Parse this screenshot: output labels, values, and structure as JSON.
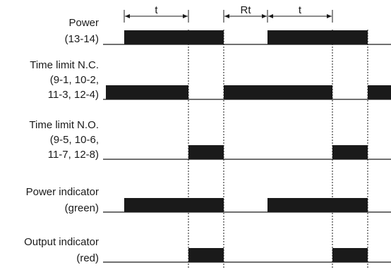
{
  "diagram": {
    "title": "",
    "timing_labels": {
      "on_time": "t",
      "reset_time": "Rt"
    },
    "rows": [
      {
        "id": "power",
        "label_lines": [
          "Power",
          "(13-14)"
        ],
        "segments": [
          {
            "from": "t0",
            "to": "t1",
            "state": "on"
          },
          {
            "from": "t1",
            "to": "t2",
            "state": "on"
          },
          {
            "from": "t3",
            "to": "t4",
            "state": "on"
          },
          {
            "from": "t4",
            "to": "t5",
            "state": "on"
          }
        ]
      },
      {
        "id": "time-limit-nc",
        "label_lines": [
          "Time limit N.C.",
          "(9-1, 10-2,",
          "11-3, 12-4)"
        ],
        "segments": [
          {
            "from": "start",
            "to": "t1",
            "state": "on"
          },
          {
            "from": "t2",
            "to": "t4",
            "state": "on"
          },
          {
            "from": "t5",
            "to": "end",
            "state": "on"
          }
        ]
      },
      {
        "id": "time-limit-no",
        "label_lines": [
          "Time limit N.O.",
          "(9-5, 10-6,",
          "11-7, 12-8)"
        ],
        "segments": [
          {
            "from": "t1",
            "to": "t2",
            "state": "on"
          },
          {
            "from": "t4",
            "to": "t5",
            "state": "on"
          }
        ]
      },
      {
        "id": "power-indicator",
        "label_lines": [
          "Power indicator",
          "(green)"
        ],
        "segments": [
          {
            "from": "t0",
            "to": "t2",
            "state": "on"
          },
          {
            "from": "t3",
            "to": "t5",
            "state": "on"
          }
        ]
      },
      {
        "id": "output-indicator",
        "label_lines": [
          "Output indicator",
          "(red)"
        ],
        "segments": [
          {
            "from": "t1",
            "to": "t2",
            "state": "on"
          },
          {
            "from": "t4",
            "to": "t5",
            "state": "on"
          }
        ]
      }
    ],
    "colors": {
      "signal": "#1a1a1a",
      "line": "#1a1a1a",
      "background": "#ffffff"
    }
  }
}
